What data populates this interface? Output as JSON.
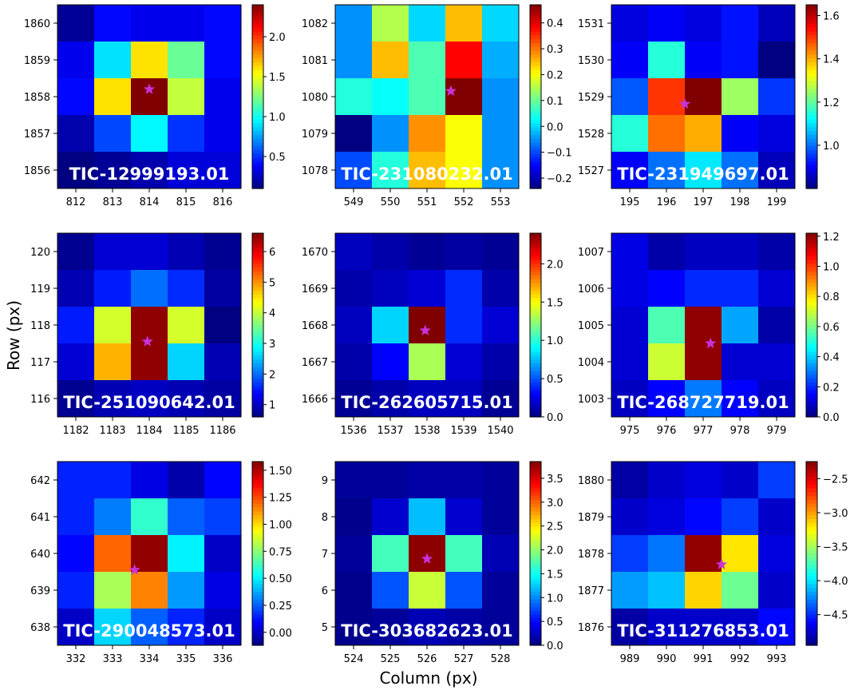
{
  "figure": {
    "ylabel": "Row (px)",
    "xlabel": "Column (px)"
  },
  "chart_data": [
    {
      "type": "heatmap",
      "title": "TIC-12999193.01",
      "x_ticks": [
        "812",
        "813",
        "814",
        "815",
        "816"
      ],
      "y_ticks": [
        "1860",
        "1859",
        "1858",
        "1857",
        "1856"
      ],
      "values": [
        [
          0.15,
          0.4,
          0.35,
          0.35,
          0.4
        ],
        [
          0.35,
          0.9,
          1.6,
          1.2,
          0.4
        ],
        [
          0.4,
          1.6,
          2.4,
          1.4,
          0.35
        ],
        [
          0.2,
          0.55,
          0.95,
          0.5,
          0.35
        ],
        [
          0.1,
          0.15,
          0.2,
          0.3,
          0.3
        ]
      ],
      "vmin": 0.1,
      "vmax": 2.4,
      "colorbar_ticks": [
        "0.5",
        "1.0",
        "1.5",
        "2.0"
      ],
      "colorbar_tick_values": [
        0.5,
        1.0,
        1.5,
        2.0
      ],
      "star": {
        "col": 814,
        "row": 1858.2
      }
    },
    {
      "type": "heatmap",
      "title": "TIC-231080232.01",
      "x_ticks": [
        "549",
        "550",
        "551",
        "552",
        "553"
      ],
      "y_ticks": [
        "1082",
        "1081",
        "1080",
        "1079",
        "1078"
      ],
      "values": [
        [
          -0.05,
          0.15,
          0.0,
          0.25,
          0.0
        ],
        [
          -0.05,
          0.25,
          0.08,
          0.38,
          -0.03
        ],
        [
          0.05,
          0.03,
          0.08,
          0.47,
          -0.05
        ],
        [
          -0.24,
          -0.05,
          0.28,
          0.2,
          -0.05
        ],
        [
          -0.1,
          0.05,
          0.25,
          0.2,
          -0.05
        ]
      ],
      "vmin": -0.24,
      "vmax": 0.47,
      "colorbar_ticks": [
        "0.4",
        "0.3",
        "0.2",
        "0.1",
        "0.0",
        "−0.1",
        "−0.2"
      ],
      "colorbar_tick_values": [
        0.4,
        0.3,
        0.2,
        0.1,
        0.0,
        -0.1,
        -0.2
      ],
      "star": {
        "col": 551.65,
        "row": 1080.15
      }
    },
    {
      "type": "heatmap",
      "title": "TIC-231949697.01",
      "x_ticks": [
        "195",
        "196",
        "197",
        "198",
        "199"
      ],
      "y_ticks": [
        "1531",
        "1530",
        "1529",
        "1528",
        "1527"
      ],
      "values": [
        [
          0.88,
          0.9,
          0.88,
          0.92,
          0.85
        ],
        [
          0.9,
          1.15,
          0.9,
          0.92,
          0.8
        ],
        [
          0.98,
          1.5,
          1.65,
          1.25,
          0.95
        ],
        [
          1.15,
          1.45,
          1.4,
          0.9,
          0.88
        ],
        [
          0.9,
          1.0,
          1.1,
          1.0,
          0.85
        ]
      ],
      "vmin": 0.8,
      "vmax": 1.65,
      "colorbar_ticks": [
        "1.6",
        "1.4",
        "1.2",
        "1.0"
      ],
      "colorbar_tick_values": [
        1.6,
        1.4,
        1.2,
        1.0
      ],
      "star": {
        "col": 196.5,
        "row": 1528.8
      }
    },
    {
      "type": "heatmap",
      "title": "TIC-251090642.01",
      "x_ticks": [
        "1182",
        "1183",
        "1184",
        "1185",
        "1186"
      ],
      "y_ticks": [
        "120",
        "119",
        "118",
        "117",
        "116"
      ],
      "values": [
        [
          0.7,
          1.1,
          1.1,
          0.9,
          0.7
        ],
        [
          0.9,
          1.5,
          2.0,
          1.6,
          0.8
        ],
        [
          1.5,
          4.1,
          6.5,
          4.1,
          0.6
        ],
        [
          1.1,
          4.8,
          6.5,
          2.6,
          0.9
        ],
        [
          0.7,
          0.9,
          1.0,
          0.9,
          0.8
        ]
      ],
      "vmin": 0.6,
      "vmax": 6.6,
      "colorbar_ticks": [
        "6",
        "5",
        "4",
        "3",
        "2",
        "1"
      ],
      "colorbar_tick_values": [
        6,
        5,
        4,
        3,
        2,
        1
      ],
      "star": {
        "col": 1183.95,
        "row": 117.55
      }
    },
    {
      "type": "heatmap",
      "title": "TIC-262605715.01",
      "x_ticks": [
        "1536",
        "1537",
        "1538",
        "1539",
        "1540"
      ],
      "y_ticks": [
        "1670",
        "1669",
        "1668",
        "1667",
        "1666"
      ],
      "values": [
        [
          0.15,
          0.1,
          0.05,
          0.08,
          0.05
        ],
        [
          0.1,
          0.15,
          0.2,
          0.4,
          0.1
        ],
        [
          0.15,
          0.8,
          2.4,
          0.4,
          0.2
        ],
        [
          0.1,
          0.3,
          1.3,
          0.2,
          0.1
        ],
        [
          0.05,
          0.1,
          0.15,
          0.15,
          0.05
        ]
      ],
      "vmin": 0.0,
      "vmax": 2.4,
      "colorbar_ticks": [
        "2.0",
        "1.5",
        "1.0",
        "0.5",
        "0.0"
      ],
      "colorbar_tick_values": [
        2.0,
        1.5,
        1.0,
        0.5,
        0.0
      ],
      "star": {
        "col": 1537.95,
        "row": 1667.85
      }
    },
    {
      "type": "heatmap",
      "title": "TIC-268727719.01",
      "x_ticks": [
        "975",
        "976",
        "977",
        "978",
        "979"
      ],
      "y_ticks": [
        "1007",
        "1006",
        "1005",
        "1004",
        "1003"
      ],
      "values": [
        [
          0.12,
          0.05,
          0.08,
          0.08,
          0.05
        ],
        [
          0.12,
          0.15,
          0.2,
          0.2,
          0.1
        ],
        [
          0.1,
          0.55,
          1.2,
          0.35,
          0.05
        ],
        [
          0.1,
          0.7,
          1.2,
          0.1,
          0.1
        ],
        [
          0.08,
          0.15,
          0.3,
          0.15,
          0.08
        ]
      ],
      "vmin": 0.0,
      "vmax": 1.22,
      "colorbar_ticks": [
        "1.2",
        "1.0",
        "0.8",
        "0.6",
        "0.4",
        "0.2",
        "0.0"
      ],
      "colorbar_tick_values": [
        1.2,
        1.0,
        0.8,
        0.6,
        0.4,
        0.2,
        0.0
      ],
      "star": {
        "col": 977.2,
        "row": 1004.5
      }
    },
    {
      "type": "heatmap",
      "title": "TIC-290048573.01",
      "x_ticks": [
        "332",
        "333",
        "334",
        "335",
        "336"
      ],
      "y_ticks": [
        "642",
        "641",
        "640",
        "639",
        "638"
      ],
      "values": [
        [
          0.15,
          0.15,
          0.05,
          -0.05,
          0.1
        ],
        [
          0.15,
          0.3,
          0.6,
          0.25,
          0.2
        ],
        [
          0.1,
          1.2,
          1.55,
          0.5,
          0.0
        ],
        [
          0.15,
          0.8,
          1.15,
          0.35,
          0.05
        ],
        [
          0.0,
          0.45,
          0.25,
          0.15,
          0.0
        ]
      ],
      "vmin": -0.12,
      "vmax": 1.58,
      "colorbar_ticks": [
        "1.50",
        "1.25",
        "1.00",
        "0.75",
        "0.50",
        "0.25",
        "0.00"
      ],
      "colorbar_tick_values": [
        1.5,
        1.25,
        1.0,
        0.75,
        0.5,
        0.25,
        0.0
      ],
      "star": {
        "col": 333.6,
        "row": 639.55
      }
    },
    {
      "type": "heatmap",
      "title": "TIC-303682623.01",
      "x_ticks": [
        "524",
        "525",
        "526",
        "527",
        "528"
      ],
      "y_ticks": [
        "9",
        "8",
        "7",
        "6",
        "5"
      ],
      "values": [
        [
          0.1,
          0.1,
          0.15,
          0.15,
          0.1
        ],
        [
          0.05,
          0.3,
          1.2,
          0.3,
          0.1
        ],
        [
          0.1,
          1.7,
          3.8,
          1.7,
          0.2
        ],
        [
          0.05,
          0.8,
          2.2,
          0.8,
          0.1
        ],
        [
          0.05,
          0.1,
          0.2,
          0.15,
          0.1
        ]
      ],
      "vmin": 0.0,
      "vmax": 3.85,
      "colorbar_ticks": [
        "3.5",
        "3.0",
        "2.5",
        "2.0",
        "1.5",
        "1.0",
        "0.5",
        "0.0"
      ],
      "colorbar_tick_values": [
        3.5,
        3.0,
        2.5,
        2.0,
        1.5,
        1.0,
        0.5,
        0.0
      ],
      "star": {
        "col": 526,
        "row": 6.85
      }
    },
    {
      "type": "heatmap",
      "title": "TIC-311276853.01",
      "x_ticks": [
        "989",
        "990",
        "991",
        "992",
        "993"
      ],
      "y_ticks": [
        "1880",
        "1879",
        "1878",
        "1877",
        "1876"
      ],
      "values": [
        [
          -4.85,
          -4.75,
          -4.7,
          -4.75,
          -4.45
        ],
        [
          -4.75,
          -4.7,
          -4.6,
          -4.45,
          -4.75
        ],
        [
          -4.45,
          -4.3,
          -2.3,
          -3.2,
          -4.7
        ],
        [
          -4.2,
          -4.1,
          -3.15,
          -3.65,
          -4.75
        ],
        [
          -4.85,
          -4.75,
          -4.75,
          -4.75,
          -4.6
        ]
      ],
      "vmin": -4.95,
      "vmax": -2.25,
      "colorbar_ticks": [
        "−2.5",
        "−3.0",
        "−3.5",
        "−4.0",
        "−4.5"
      ],
      "colorbar_tick_values": [
        -2.5,
        -3.0,
        -3.5,
        -4.0,
        -4.5
      ],
      "star": {
        "col": 991.5,
        "row": 1877.7
      }
    }
  ]
}
